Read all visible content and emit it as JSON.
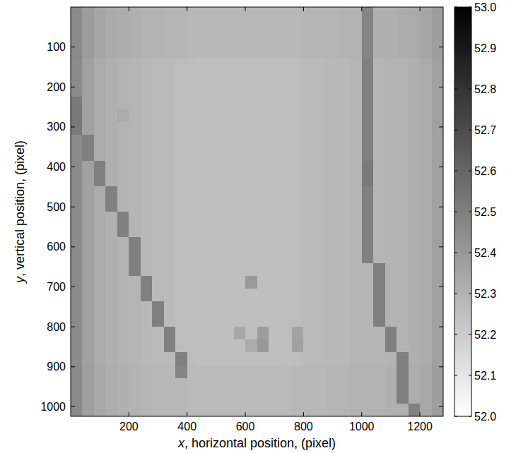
{
  "chart_data": {
    "type": "heatmap",
    "xlabel": "x, horizontal position, (pixel)",
    "ylabel": "y, vertical position, (pixel)",
    "xlim": [
      0,
      1280
    ],
    "ylim": [
      1024,
      0
    ],
    "xticks": [
      200,
      400,
      600,
      800,
      1000,
      1200
    ],
    "yticks": [
      100,
      200,
      300,
      400,
      500,
      600,
      700,
      800,
      900,
      1000
    ],
    "colorbar_range": [
      52,
      53
    ],
    "colorbar_ticks": [
      {
        "value": 52,
        "label": "52.0"
      },
      52.1,
      52.2,
      52.3,
      52.4,
      52.5,
      52.6,
      52.7,
      52.8,
      52.9,
      {
        "value": 53,
        "label": "53.0"
      }
    ],
    "cells": [
      [
        52.46,
        52.39,
        52.35,
        52.33,
        52.32,
        52.31,
        52.3,
        52.3,
        52.29,
        52.29,
        52.28,
        52.28,
        52.28,
        52.28,
        52.28,
        52.28,
        52.28,
        52.28,
        52.28,
        52.28,
        52.29,
        52.29,
        52.29,
        52.3,
        52.3,
        52.48,
        52.31,
        52.31,
        52.32,
        52.33,
        52.35,
        52.38
      ],
      [
        52.46,
        52.39,
        52.35,
        52.33,
        52.32,
        52.31,
        52.3,
        52.3,
        52.29,
        52.29,
        52.28,
        52.28,
        52.28,
        52.28,
        52.28,
        52.28,
        52.28,
        52.28,
        52.28,
        52.28,
        52.29,
        52.29,
        52.29,
        52.3,
        52.3,
        52.48,
        52.31,
        52.31,
        52.32,
        52.33,
        52.35,
        52.38
      ],
      [
        52.46,
        52.39,
        52.35,
        52.33,
        52.32,
        52.31,
        52.3,
        52.3,
        52.29,
        52.29,
        52.28,
        52.28,
        52.28,
        52.28,
        52.28,
        52.28,
        52.28,
        52.28,
        52.28,
        52.28,
        52.29,
        52.29,
        52.29,
        52.3,
        52.3,
        52.48,
        52.31,
        52.31,
        52.32,
        52.33,
        52.35,
        52.38
      ],
      [
        52.46,
        52.39,
        52.35,
        52.33,
        52.32,
        52.31,
        52.3,
        52.3,
        52.29,
        52.29,
        52.28,
        52.28,
        52.28,
        52.28,
        52.28,
        52.28,
        52.28,
        52.28,
        52.28,
        52.28,
        52.29,
        52.29,
        52.29,
        52.3,
        52.3,
        52.48,
        52.31,
        52.31,
        52.32,
        52.33,
        52.35,
        52.38
      ],
      [
        52.45,
        52.37,
        52.33,
        52.31,
        52.3,
        52.29,
        52.28,
        52.27,
        52.27,
        52.26,
        52.26,
        52.25,
        52.25,
        52.25,
        52.25,
        52.25,
        52.25,
        52.25,
        52.26,
        52.26,
        52.27,
        52.27,
        52.28,
        52.28,
        52.29,
        52.5,
        52.29,
        52.3,
        52.3,
        52.31,
        52.33,
        52.37
      ],
      [
        52.45,
        52.37,
        52.33,
        52.31,
        52.3,
        52.29,
        52.28,
        52.27,
        52.27,
        52.26,
        52.26,
        52.25,
        52.25,
        52.25,
        52.25,
        52.25,
        52.25,
        52.25,
        52.26,
        52.26,
        52.27,
        52.27,
        52.28,
        52.28,
        52.29,
        52.5,
        52.29,
        52.3,
        52.3,
        52.31,
        52.33,
        52.37
      ],
      [
        52.45,
        52.37,
        52.33,
        52.31,
        52.3,
        52.29,
        52.28,
        52.27,
        52.27,
        52.26,
        52.26,
        52.25,
        52.25,
        52.25,
        52.25,
        52.25,
        52.25,
        52.25,
        52.26,
        52.26,
        52.27,
        52.27,
        52.28,
        52.28,
        52.29,
        52.5,
        52.29,
        52.3,
        52.3,
        52.31,
        52.33,
        52.37
      ],
      [
        52.52,
        52.37,
        52.33,
        52.31,
        52.3,
        52.29,
        52.28,
        52.27,
        52.27,
        52.26,
        52.26,
        52.25,
        52.25,
        52.25,
        52.25,
        52.25,
        52.25,
        52.25,
        52.26,
        52.26,
        52.27,
        52.27,
        52.28,
        52.28,
        52.29,
        52.5,
        52.29,
        52.3,
        52.3,
        52.31,
        52.33,
        52.37
      ],
      [
        52.52,
        52.37,
        52.33,
        52.31,
        52.33,
        52.29,
        52.28,
        52.27,
        52.27,
        52.26,
        52.26,
        52.25,
        52.25,
        52.25,
        52.25,
        52.25,
        52.25,
        52.25,
        52.26,
        52.26,
        52.27,
        52.27,
        52.28,
        52.28,
        52.29,
        52.5,
        52.29,
        52.3,
        52.3,
        52.31,
        52.33,
        52.37
      ],
      [
        52.52,
        52.37,
        52.33,
        52.31,
        52.3,
        52.29,
        52.28,
        52.27,
        52.27,
        52.26,
        52.26,
        52.25,
        52.25,
        52.25,
        52.25,
        52.25,
        52.25,
        52.25,
        52.26,
        52.26,
        52.27,
        52.27,
        52.28,
        52.28,
        52.29,
        52.5,
        52.29,
        52.3,
        52.3,
        52.31,
        52.33,
        52.37
      ],
      [
        52.45,
        52.5,
        52.33,
        52.31,
        52.3,
        52.29,
        52.28,
        52.27,
        52.27,
        52.26,
        52.26,
        52.25,
        52.25,
        52.25,
        52.25,
        52.25,
        52.25,
        52.25,
        52.26,
        52.26,
        52.27,
        52.27,
        52.28,
        52.28,
        52.29,
        52.5,
        52.29,
        52.3,
        52.3,
        52.31,
        52.33,
        52.37
      ],
      [
        52.45,
        52.5,
        52.33,
        52.31,
        52.3,
        52.29,
        52.28,
        52.27,
        52.27,
        52.26,
        52.26,
        52.25,
        52.25,
        52.25,
        52.25,
        52.25,
        52.25,
        52.25,
        52.26,
        52.26,
        52.27,
        52.27,
        52.28,
        52.28,
        52.29,
        52.5,
        52.29,
        52.3,
        52.3,
        52.31,
        52.33,
        52.37
      ],
      [
        52.45,
        52.37,
        52.5,
        52.31,
        52.3,
        52.29,
        52.28,
        52.27,
        52.27,
        52.26,
        52.26,
        52.25,
        52.25,
        52.25,
        52.25,
        52.25,
        52.25,
        52.25,
        52.26,
        52.26,
        52.27,
        52.27,
        52.28,
        52.28,
        52.29,
        52.52,
        52.29,
        52.3,
        52.3,
        52.31,
        52.33,
        52.37
      ],
      [
        52.45,
        52.37,
        52.5,
        52.31,
        52.3,
        52.29,
        52.28,
        52.27,
        52.27,
        52.26,
        52.26,
        52.25,
        52.25,
        52.25,
        52.25,
        52.25,
        52.25,
        52.25,
        52.26,
        52.26,
        52.27,
        52.27,
        52.28,
        52.28,
        52.29,
        52.52,
        52.29,
        52.3,
        52.3,
        52.31,
        52.33,
        52.37
      ],
      [
        52.45,
        52.37,
        52.33,
        52.5,
        52.3,
        52.29,
        52.28,
        52.27,
        52.27,
        52.26,
        52.26,
        52.25,
        52.25,
        52.25,
        52.25,
        52.25,
        52.25,
        52.25,
        52.26,
        52.26,
        52.27,
        52.27,
        52.28,
        52.28,
        52.29,
        52.5,
        52.29,
        52.3,
        52.3,
        52.31,
        52.33,
        52.37
      ],
      [
        52.45,
        52.37,
        52.33,
        52.5,
        52.3,
        52.29,
        52.28,
        52.27,
        52.27,
        52.26,
        52.26,
        52.25,
        52.25,
        52.25,
        52.25,
        52.25,
        52.25,
        52.25,
        52.26,
        52.26,
        52.27,
        52.27,
        52.28,
        52.28,
        52.29,
        52.5,
        52.29,
        52.3,
        52.3,
        52.31,
        52.33,
        52.37
      ],
      [
        52.45,
        52.37,
        52.33,
        52.31,
        52.5,
        52.29,
        52.28,
        52.27,
        52.27,
        52.26,
        52.26,
        52.25,
        52.25,
        52.25,
        52.25,
        52.25,
        52.25,
        52.25,
        52.26,
        52.26,
        52.27,
        52.27,
        52.28,
        52.28,
        52.29,
        52.5,
        52.29,
        52.3,
        52.3,
        52.31,
        52.33,
        52.37
      ],
      [
        52.45,
        52.37,
        52.33,
        52.31,
        52.5,
        52.29,
        52.28,
        52.27,
        52.27,
        52.26,
        52.26,
        52.25,
        52.25,
        52.25,
        52.25,
        52.25,
        52.25,
        52.25,
        52.26,
        52.26,
        52.27,
        52.27,
        52.28,
        52.28,
        52.29,
        52.5,
        52.29,
        52.3,
        52.3,
        52.31,
        52.33,
        52.37
      ],
      [
        52.45,
        52.37,
        52.33,
        52.31,
        52.3,
        52.5,
        52.28,
        52.27,
        52.27,
        52.26,
        52.26,
        52.25,
        52.25,
        52.25,
        52.25,
        52.25,
        52.25,
        52.25,
        52.26,
        52.26,
        52.27,
        52.27,
        52.28,
        52.28,
        52.29,
        52.5,
        52.29,
        52.3,
        52.3,
        52.31,
        52.33,
        52.37
      ],
      [
        52.45,
        52.37,
        52.33,
        52.31,
        52.3,
        52.5,
        52.28,
        52.27,
        52.27,
        52.26,
        52.26,
        52.25,
        52.25,
        52.25,
        52.25,
        52.25,
        52.25,
        52.25,
        52.26,
        52.26,
        52.27,
        52.27,
        52.28,
        52.28,
        52.29,
        52.5,
        52.29,
        52.3,
        52.3,
        52.31,
        52.33,
        52.37
      ],
      [
        52.45,
        52.37,
        52.33,
        52.31,
        52.3,
        52.5,
        52.28,
        52.27,
        52.27,
        52.26,
        52.26,
        52.25,
        52.25,
        52.25,
        52.25,
        52.25,
        52.25,
        52.25,
        52.26,
        52.26,
        52.27,
        52.27,
        52.28,
        52.28,
        52.29,
        52.29,
        52.5,
        52.3,
        52.3,
        52.31,
        52.33,
        52.37
      ],
      [
        52.45,
        52.37,
        52.33,
        52.31,
        52.3,
        52.29,
        52.5,
        52.27,
        52.27,
        52.26,
        52.26,
        52.25,
        52.25,
        52.25,
        52.25,
        52.4,
        52.25,
        52.25,
        52.26,
        52.26,
        52.27,
        52.27,
        52.28,
        52.28,
        52.29,
        52.29,
        52.5,
        52.3,
        52.3,
        52.31,
        52.33,
        52.37
      ],
      [
        52.45,
        52.37,
        52.33,
        52.31,
        52.3,
        52.29,
        52.5,
        52.27,
        52.27,
        52.26,
        52.26,
        52.25,
        52.25,
        52.25,
        52.25,
        52.25,
        52.25,
        52.25,
        52.26,
        52.26,
        52.27,
        52.27,
        52.28,
        52.28,
        52.29,
        52.29,
        52.5,
        52.3,
        52.3,
        52.31,
        52.33,
        52.37
      ],
      [
        52.45,
        52.37,
        52.33,
        52.31,
        52.3,
        52.29,
        52.28,
        52.5,
        52.27,
        52.26,
        52.26,
        52.25,
        52.25,
        52.25,
        52.25,
        52.25,
        52.25,
        52.25,
        52.26,
        52.26,
        52.27,
        52.27,
        52.28,
        52.28,
        52.29,
        52.29,
        52.5,
        52.3,
        52.3,
        52.31,
        52.33,
        52.37
      ],
      [
        52.45,
        52.37,
        52.33,
        52.31,
        52.3,
        52.29,
        52.28,
        52.5,
        52.27,
        52.26,
        52.26,
        52.25,
        52.25,
        52.25,
        52.25,
        52.25,
        52.25,
        52.25,
        52.26,
        52.26,
        52.27,
        52.27,
        52.28,
        52.28,
        52.29,
        52.29,
        52.5,
        52.3,
        52.3,
        52.31,
        52.33,
        52.37
      ],
      [
        52.45,
        52.37,
        52.33,
        52.31,
        52.3,
        52.29,
        52.28,
        52.27,
        52.5,
        52.26,
        52.26,
        52.25,
        52.25,
        52.25,
        52.34,
        52.25,
        52.38,
        52.25,
        52.26,
        52.36,
        52.27,
        52.27,
        52.28,
        52.28,
        52.29,
        52.29,
        52.29,
        52.5,
        52.3,
        52.31,
        52.33,
        52.37
      ],
      [
        52.45,
        52.37,
        52.33,
        52.31,
        52.3,
        52.29,
        52.28,
        52.27,
        52.5,
        52.26,
        52.26,
        52.25,
        52.25,
        52.25,
        52.25,
        52.33,
        52.4,
        52.25,
        52.26,
        52.37,
        52.27,
        52.27,
        52.28,
        52.28,
        52.29,
        52.29,
        52.29,
        52.5,
        52.3,
        52.31,
        52.33,
        52.37
      ],
      [
        52.45,
        52.37,
        52.33,
        52.31,
        52.3,
        52.29,
        52.28,
        52.27,
        52.27,
        52.5,
        52.26,
        52.25,
        52.25,
        52.25,
        52.25,
        52.25,
        52.25,
        52.25,
        52.26,
        52.26,
        52.27,
        52.27,
        52.28,
        52.28,
        52.29,
        52.29,
        52.29,
        52.3,
        52.5,
        52.31,
        52.33,
        52.37
      ],
      [
        52.46,
        52.38,
        52.34,
        52.32,
        52.31,
        52.3,
        52.29,
        52.28,
        52.28,
        52.48,
        52.27,
        52.27,
        52.27,
        52.27,
        52.27,
        52.27,
        52.27,
        52.27,
        52.27,
        52.28,
        52.28,
        52.28,
        52.29,
        52.29,
        52.3,
        52.3,
        52.3,
        52.31,
        52.5,
        52.32,
        52.34,
        52.38
      ],
      [
        52.46,
        52.38,
        52.34,
        52.32,
        52.31,
        52.3,
        52.29,
        52.28,
        52.28,
        52.28,
        52.27,
        52.27,
        52.27,
        52.27,
        52.27,
        52.27,
        52.27,
        52.27,
        52.27,
        52.28,
        52.28,
        52.28,
        52.29,
        52.29,
        52.3,
        52.3,
        52.3,
        52.31,
        52.5,
        52.32,
        52.34,
        52.38
      ],
      [
        52.46,
        52.38,
        52.34,
        52.32,
        52.31,
        52.3,
        52.29,
        52.28,
        52.28,
        52.28,
        52.27,
        52.27,
        52.27,
        52.27,
        52.27,
        52.27,
        52.27,
        52.27,
        52.27,
        52.28,
        52.28,
        52.28,
        52.29,
        52.29,
        52.3,
        52.3,
        52.3,
        52.31,
        52.5,
        52.32,
        52.34,
        52.38
      ],
      [
        52.46,
        52.38,
        52.34,
        52.32,
        52.31,
        52.3,
        52.29,
        52.28,
        52.28,
        52.28,
        52.27,
        52.27,
        52.27,
        52.27,
        52.27,
        52.27,
        52.27,
        52.27,
        52.27,
        52.28,
        52.28,
        52.28,
        52.29,
        52.29,
        52.3,
        52.3,
        52.3,
        52.31,
        52.31,
        52.5,
        52.34,
        52.38
      ]
    ]
  }
}
